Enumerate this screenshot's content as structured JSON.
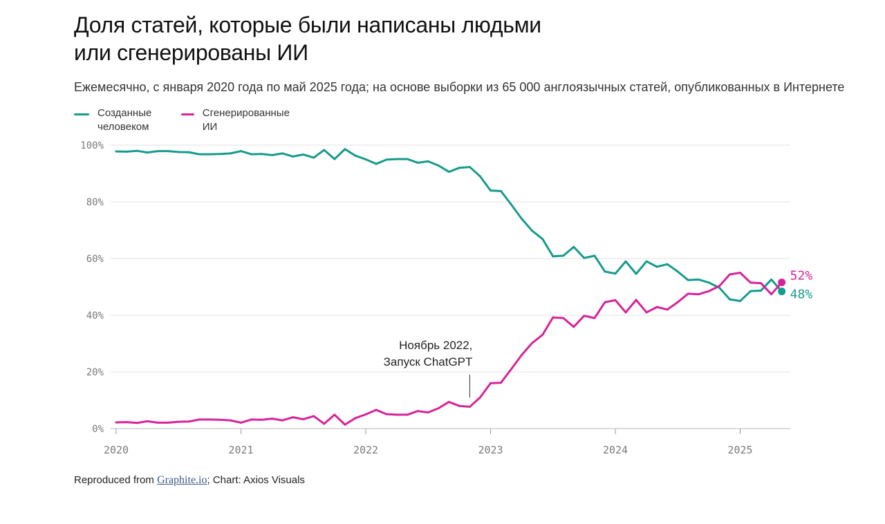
{
  "title": {
    "line1": "Доля статей, которые были написаны людьми",
    "line2": "или сгенерированы ИИ"
  },
  "subtitle": "Ежемесячно, с января 2020 года по май 2025 года; на основе выборки из 65 000 англоязычных статей, опубликованных в Интернете",
  "source": {
    "prefix": "Reproduced from ",
    "link": "Graphite.io",
    "suffix": "; Chart: Axios Visuals"
  },
  "annotation": {
    "line1": "Ноябрь 2022,",
    "line2": "Запуск ChatGPT"
  },
  "colors": {
    "human": "#169b8c",
    "ai": "#d6239a",
    "grid": "#e2e2e2",
    "axis_text": "#7a7a7a"
  },
  "chart_data": {
    "type": "line",
    "title": "Доля статей, которые были написаны людьми или сгенерированы ИИ",
    "subtitle": "Ежемесячно, с января 2020 года по май 2025 года; на основе выборки из 65 000 англоязычных статей, опубликованных в Интернете",
    "xlabel": "",
    "ylabel": "",
    "x_ticks": [
      "2020",
      "2021",
      "2022",
      "2023",
      "2024",
      "2025"
    ],
    "y_ticks": [
      "0%",
      "20%",
      "40%",
      "60%",
      "80%",
      "100%"
    ],
    "ylim": [
      0,
      100
    ],
    "xlim": [
      "2020-01",
      "2025-05"
    ],
    "grid": true,
    "legend": "top-left",
    "x": [
      "2020-01",
      "2020-02",
      "2020-03",
      "2020-04",
      "2020-05",
      "2020-06",
      "2020-07",
      "2020-08",
      "2020-09",
      "2020-10",
      "2020-11",
      "2020-12",
      "2021-01",
      "2021-02",
      "2021-03",
      "2021-04",
      "2021-05",
      "2021-06",
      "2021-07",
      "2021-08",
      "2021-09",
      "2021-10",
      "2021-11",
      "2021-12",
      "2022-01",
      "2022-02",
      "2022-03",
      "2022-04",
      "2022-05",
      "2022-06",
      "2022-07",
      "2022-08",
      "2022-09",
      "2022-10",
      "2022-11",
      "2022-12",
      "2023-01",
      "2023-02",
      "2023-03",
      "2023-04",
      "2023-05",
      "2023-06",
      "2023-07",
      "2023-08",
      "2023-09",
      "2023-10",
      "2023-11",
      "2023-12",
      "2024-01",
      "2024-02",
      "2024-03",
      "2024-04",
      "2024-05",
      "2024-06",
      "2024-07",
      "2024-08",
      "2024-09",
      "2024-10",
      "2024-11",
      "2024-12",
      "2025-01",
      "2025-02",
      "2025-03",
      "2025-04",
      "2025-05"
    ],
    "series": [
      {
        "name": "Созданные\nчеловеком",
        "color": "#169b8c",
        "end_label": "48%",
        "values": [
          97.8,
          97.7,
          98.0,
          97.4,
          97.9,
          97.9,
          97.6,
          97.5,
          96.8,
          96.8,
          96.9,
          97.1,
          97.9,
          96.8,
          96.9,
          96.5,
          97.1,
          96.0,
          96.7,
          95.6,
          98.3,
          95.1,
          98.6,
          96.3,
          95.0,
          93.4,
          94.9,
          95.1,
          95.1,
          93.8,
          94.3,
          92.8,
          90.6,
          92.0,
          92.3,
          89.0,
          84.0,
          83.8,
          79.0,
          74.0,
          69.8,
          66.9,
          60.8,
          61.0,
          64.1,
          60.2,
          61.0,
          55.4,
          54.7,
          59.0,
          54.6,
          59.0,
          57.1,
          58.0,
          55.4,
          52.4,
          52.6,
          51.5,
          49.7,
          45.6,
          45.0,
          48.5,
          48.7,
          52.6,
          48.4
        ]
      },
      {
        "name": "Сгенерированные ИИ",
        "color": "#d6239a",
        "end_label": "52%",
        "values": [
          2.2,
          2.3,
          2.0,
          2.6,
          2.1,
          2.1,
          2.4,
          2.5,
          3.2,
          3.2,
          3.1,
          2.9,
          2.1,
          3.2,
          3.1,
          3.5,
          2.9,
          4.0,
          3.3,
          4.4,
          1.7,
          4.9,
          1.4,
          3.7,
          5.0,
          6.6,
          5.1,
          4.9,
          4.9,
          6.2,
          5.7,
          7.2,
          9.4,
          8.0,
          7.7,
          11.0,
          16.0,
          16.2,
          21.0,
          26.0,
          30.2,
          33.1,
          39.2,
          39.0,
          35.9,
          39.8,
          39.0,
          44.6,
          45.3,
          41.0,
          45.4,
          41.0,
          42.9,
          42.0,
          44.6,
          47.6,
          47.4,
          48.5,
          50.3,
          54.4,
          55.0,
          51.5,
          51.3,
          47.4,
          51.6
        ]
      }
    ]
  }
}
